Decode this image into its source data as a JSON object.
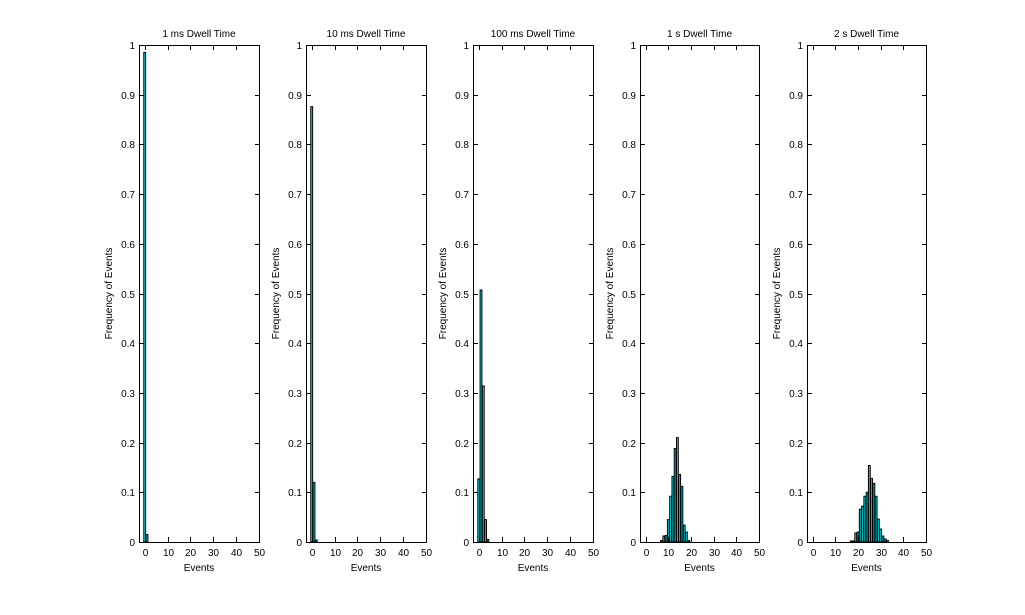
{
  "figure": {
    "background": "#ffffff",
    "bar_fill": "#00E5EE",
    "bar_edge": "#000000"
  },
  "chart_data": [
    {
      "type": "bar",
      "title": "1 ms Dwell Time",
      "xlabel": "Events",
      "ylabel": "Frequency of Events",
      "xlim": [
        -2.5,
        50
      ],
      "ylim": [
        0,
        1
      ],
      "xticks": [
        "0",
        "10",
        "20",
        "30",
        "40",
        "50"
      ],
      "yticks": [
        "0",
        "0.1",
        "0.2",
        "0.3",
        "0.4",
        "0.5",
        "0.6",
        "0.7",
        "0.8",
        "0.9",
        "1"
      ],
      "grid": false,
      "x": [
        0,
        1
      ],
      "values": [
        0.985,
        0.015
      ]
    },
    {
      "type": "bar",
      "title": "10 ms Dwell Time",
      "xlabel": "Events",
      "ylabel": "Frequency of Events",
      "xlim": [
        -2.5,
        50
      ],
      "ylim": [
        0,
        1
      ],
      "xticks": [
        "0",
        "10",
        "20",
        "30",
        "40",
        "50"
      ],
      "yticks": [
        "0",
        "0.1",
        "0.2",
        "0.3",
        "0.4",
        "0.5",
        "0.6",
        "0.7",
        "0.8",
        "0.9",
        "1"
      ],
      "grid": false,
      "x": [
        0,
        1,
        2
      ],
      "values": [
        0.876,
        0.12,
        0.004
      ]
    },
    {
      "type": "bar",
      "title": "100 ms Dwell Time",
      "xlabel": "Events",
      "ylabel": "Frequency of Events",
      "xlim": [
        -2.5,
        50
      ],
      "ylim": [
        0,
        1
      ],
      "xticks": [
        "0",
        "10",
        "20",
        "30",
        "40",
        "50"
      ],
      "yticks": [
        "0",
        "0.1",
        "0.2",
        "0.3",
        "0.4",
        "0.5",
        "0.6",
        "0.7",
        "0.8",
        "0.9",
        "1"
      ],
      "grid": false,
      "x": [
        0,
        1,
        2,
        3,
        4
      ],
      "values": [
        0.127,
        0.507,
        0.314,
        0.045,
        0.005
      ]
    },
    {
      "type": "bar",
      "title": "1 s Dwell Time",
      "xlabel": "Events",
      "ylabel": "Frequency of Events",
      "xlim": [
        -2.5,
        50
      ],
      "ylim": [
        0,
        1
      ],
      "xticks": [
        "0",
        "10",
        "20",
        "30",
        "40",
        "50"
      ],
      "yticks": [
        "0",
        "0.1",
        "0.2",
        "0.3",
        "0.4",
        "0.5",
        "0.6",
        "0.7",
        "0.8",
        "0.9",
        "1"
      ],
      "grid": false,
      "x": [
        7,
        8,
        9,
        10,
        11,
        12,
        13,
        14,
        15,
        16,
        17,
        18,
        19
      ],
      "values": [
        0.003,
        0.012,
        0.013,
        0.045,
        0.092,
        0.132,
        0.188,
        0.21,
        0.136,
        0.112,
        0.034,
        0.02,
        0.003
      ]
    },
    {
      "type": "bar",
      "title": "2 s Dwell Time",
      "xlabel": "Events",
      "ylabel": "Frequency of Events",
      "xlim": [
        -2.5,
        50
      ],
      "ylim": [
        0,
        1
      ],
      "xticks": [
        "0",
        "10",
        "20",
        "30",
        "40",
        "50"
      ],
      "yticks": [
        "0",
        "0.1",
        "0.2",
        "0.3",
        "0.4",
        "0.5",
        "0.6",
        "0.7",
        "0.8",
        "0.9",
        "1"
      ],
      "grid": false,
      "x": [
        17,
        18,
        19,
        20,
        21,
        22,
        23,
        24,
        25,
        26,
        27,
        28,
        29,
        30,
        31,
        32,
        33
      ],
      "values": [
        0.002,
        0.002,
        0.018,
        0.02,
        0.066,
        0.072,
        0.092,
        0.1,
        0.154,
        0.128,
        0.118,
        0.092,
        0.046,
        0.026,
        0.012,
        0.006,
        0.003
      ]
    }
  ]
}
